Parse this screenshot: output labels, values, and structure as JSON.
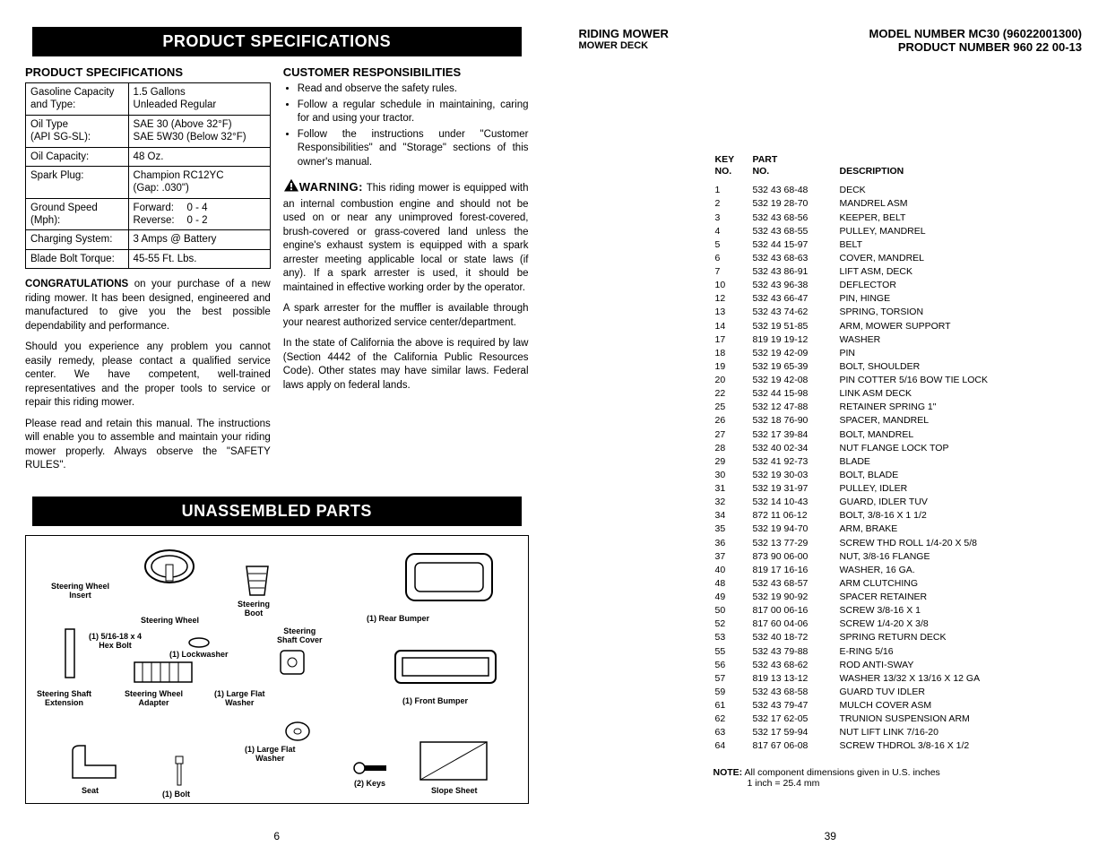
{
  "left": {
    "banner1": "PRODUCT SPECIFICATIONS",
    "banner2": "UNASSEMBLED PARTS",
    "spec_head": "PRODUCT SPECIFICATIONS",
    "cust_head": "CUSTOMER RESPONSIBILITIES",
    "specs": [
      {
        "label": "Gasoline Capacity and Type:",
        "value": "1.5 Gallons\nUnleaded Regular"
      },
      {
        "label": "Oil Type\n(API SG-SL):",
        "value": "SAE 30 (Above 32°F)\nSAE 5W30 (Below 32°F)"
      },
      {
        "label": "Oil Capacity:",
        "value": "48 Oz."
      },
      {
        "label": "Spark Plug:",
        "value": "Champion RC12YC\n(Gap:  .030\")"
      },
      {
        "label": "Ground Speed (Mph):",
        "value_speed": {
          "f_label": "Forward:",
          "f_val": "0 - 4",
          "r_label": "Reverse:",
          "r_val": "0 - 2"
        }
      },
      {
        "label": "Charging System:",
        "value": "3 Amps @ Battery"
      },
      {
        "label": "Blade Bolt Torque:",
        "value": "45-55 Ft. Lbs."
      }
    ],
    "congrats_lead": "CONGRATULATIONS",
    "congrats": " on your purchase of a new riding mower.  It has been designed, engineered and manufactured to give you the best possible dependability and per­for­mance.",
    "p1": "Should you experience any problem you cannot easily remedy, please contact a qualified service center.  We have competent, well-trained representatives and the proper tools to service or repair this riding mower.",
    "p2": "Please read and retain this manual.  The instructions will enable you to assemble and maintain your riding mower properly.  Always observe the \"SAFETY RULES\".",
    "bullets": [
      "Read and observe the safety rules.",
      "Follow a regular schedule in maintain­ing, caring for and using your tractor.",
      "Follow the instructions under \"Customer Responsibilities\" and \"Storage\" sections of this owner's manual."
    ],
    "warn_label": "WARNING:",
    "warn_body": " This riding mower is equipped with an internal combustion en­gine and should not be used on or near any unimproved forest-covered, brush-covered or grass-covered land unless the engine's exhaust system is equipped with a spark arrester meeting applicable local or state laws (if any).  If a spark arrester is used, it should be maintained in effective working order by the operator.",
    "warn_p2": "A spark arrester for the muffler is available through your nearest authorized service center/department.",
    "warn_p3": "In the state of California the above is required by law (Section 4442 of the California Public Resources Code).  Other states may have similar laws.  Federal laws apply on federal lands.",
    "diagram_labels": {
      "sw_insert": "Steering Wheel\nInsert",
      "sw": "Steering Wheel",
      "sboot": "Steering\nBoot",
      "rbumper": "(1) Rear Bumper",
      "hexbolt": "(1) 5/16-18 x 4\nHex Bolt",
      "lockwasher": "(1) Lockwasher",
      "scover": "Steering\nShaft Cover",
      "sse": "Steering Shaft\nExtension",
      "swa": "Steering Wheel\nAdapter",
      "lfw1": "(1) Large Flat\nWasher",
      "fbumper": "(1) Front Bumper",
      "lfw2": "(1) Large Flat\nWasher",
      "seat": "Seat",
      "bolt": "(1) Bolt",
      "keys": "(2) Keys",
      "slope": "Slope Sheet"
    },
    "page_num": "6"
  },
  "right": {
    "title": "RIDING MOWER",
    "subtitle": "MOWER DECK",
    "model": "MODEL NUMBER MC30 (96022001300)",
    "product": "PRODUCT NUMBER 960 22 00-13",
    "th_key": "KEY\nNO.",
    "th_part": "PART\nNO.",
    "th_desc": "DESCRIPTION",
    "parts": [
      {
        "k": "1",
        "p": "532 43 68-48",
        "d": "DECK"
      },
      {
        "k": "2",
        "p": "532 19 28-70",
        "d": "MANDREL ASM"
      },
      {
        "k": "3",
        "p": "532 43 68-56",
        "d": "KEEPER, BELT"
      },
      {
        "k": "4",
        "p": "532 43 68-55",
        "d": "PULLEY, MANDREL"
      },
      {
        "k": "5",
        "p": "532 44 15-97",
        "d": "BELT"
      },
      {
        "k": "6",
        "p": "532 43 68-63",
        "d": "COVER, MANDREL"
      },
      {
        "k": "7",
        "p": "532 43 86-91",
        "d": "LIFT ASM, DECK"
      },
      {
        "k": "10",
        "p": "532 43 96-38",
        "d": "DEFLECTOR"
      },
      {
        "k": "12",
        "p": "532 43 66-47",
        "d": "PIN, HINGE"
      },
      {
        "k": "13",
        "p": "532 43 74-62",
        "d": "SPRING, TORSION"
      },
      {
        "k": "14",
        "p": "532 19 51-85",
        "d": "ARM, MOWER SUPPORT"
      },
      {
        "k": "17",
        "p": "819 19 19-12",
        "d": "WASHER"
      },
      {
        "k": "18",
        "p": "532 19 42-09",
        "d": "PIN"
      },
      {
        "k": "19",
        "p": "532 19 65-39",
        "d": "BOLT, SHOULDER"
      },
      {
        "k": "20",
        "p": "532 19 42-08",
        "d": "PIN COTTER 5/16 BOW TIE LOCK"
      },
      {
        "k": "22",
        "p": "532 44 15-98",
        "d": "LINK ASM DECK"
      },
      {
        "k": "25",
        "p": "532 12 47-88",
        "d": "RETAINER SPRING 1\""
      },
      {
        "k": "26",
        "p": "532 18 76-90",
        "d": "SPACER, MANDREL"
      },
      {
        "k": "27",
        "p": "532 17 39-84",
        "d": "BOLT, MANDREL"
      },
      {
        "k": "28",
        "p": "532 40 02-34",
        "d": "NUT FLANGE LOCK TOP"
      },
      {
        "k": "29",
        "p": "532 41 92-73",
        "d": "BLADE"
      },
      {
        "k": "30",
        "p": "532 19 30-03",
        "d": "BOLT, BLADE"
      },
      {
        "k": "31",
        "p": "532 19 31-97",
        "d": "PULLEY, IDLER"
      },
      {
        "k": "32",
        "p": "532 14 10-43",
        "d": "GUARD, IDLER TUV"
      },
      {
        "k": "34",
        "p": "872 11 06-12",
        "d": "BOLT, 3/8-16 X 1 1/2"
      },
      {
        "k": "35",
        "p": "532 19 94-70",
        "d": "ARM, BRAKE"
      },
      {
        "k": "36",
        "p": "532 13 77-29",
        "d": "SCREW THD ROLL 1/4-20 X 5/8"
      },
      {
        "k": "37",
        "p": "873 90 06-00",
        "d": "NUT, 3/8-16 FLANGE"
      },
      {
        "k": "40",
        "p": "819 17 16-16",
        "d": "WASHER, 16 GA."
      },
      {
        "k": "48",
        "p": "532 43 68-57",
        "d": "ARM CLUTCHING"
      },
      {
        "k": "49",
        "p": "532 19 90-92",
        "d": "SPACER RETAINER"
      },
      {
        "k": "50",
        "p": "817 00 06-16",
        "d": "SCREW 3/8-16 X 1"
      },
      {
        "k": "52",
        "p": "817 60 04-06",
        "d": "SCREW 1/4-20 X 3/8"
      },
      {
        "k": "53",
        "p": "532 40 18-72",
        "d": "SPRING RETURN DECK"
      },
      {
        "k": "55",
        "p": "532 43 79-88",
        "d": "E-RING 5/16"
      },
      {
        "k": "56",
        "p": "532 43 68-62",
        "d": "ROD ANTI-SWAY"
      },
      {
        "k": "57",
        "p": "819 13 13-12",
        "d": "WASHER 13/32 X 13/16 X 12 GA"
      },
      {
        "k": "59",
        "p": "532 43 68-58",
        "d": "GUARD TUV IDLER"
      },
      {
        "k": "61",
        "p": "532 43 79-47",
        "d": "MULCH COVER ASM"
      },
      {
        "k": "62",
        "p": "532 17 62-05",
        "d": "TRUNION SUSPENSION ARM"
      },
      {
        "k": "63",
        "p": "532 17 59-94",
        "d": "NUT LIFT LINK 7/16-20"
      },
      {
        "k": "64",
        "p": "817 67 06-08",
        "d": "SCREW THDROL 3/8-16 X 1/2"
      }
    ],
    "note_lead": "NOTE:",
    "note_body": " All component dimensions given in U.S. inches",
    "note_conv": "1 inch = 25.4 mm",
    "page_num": "39"
  }
}
